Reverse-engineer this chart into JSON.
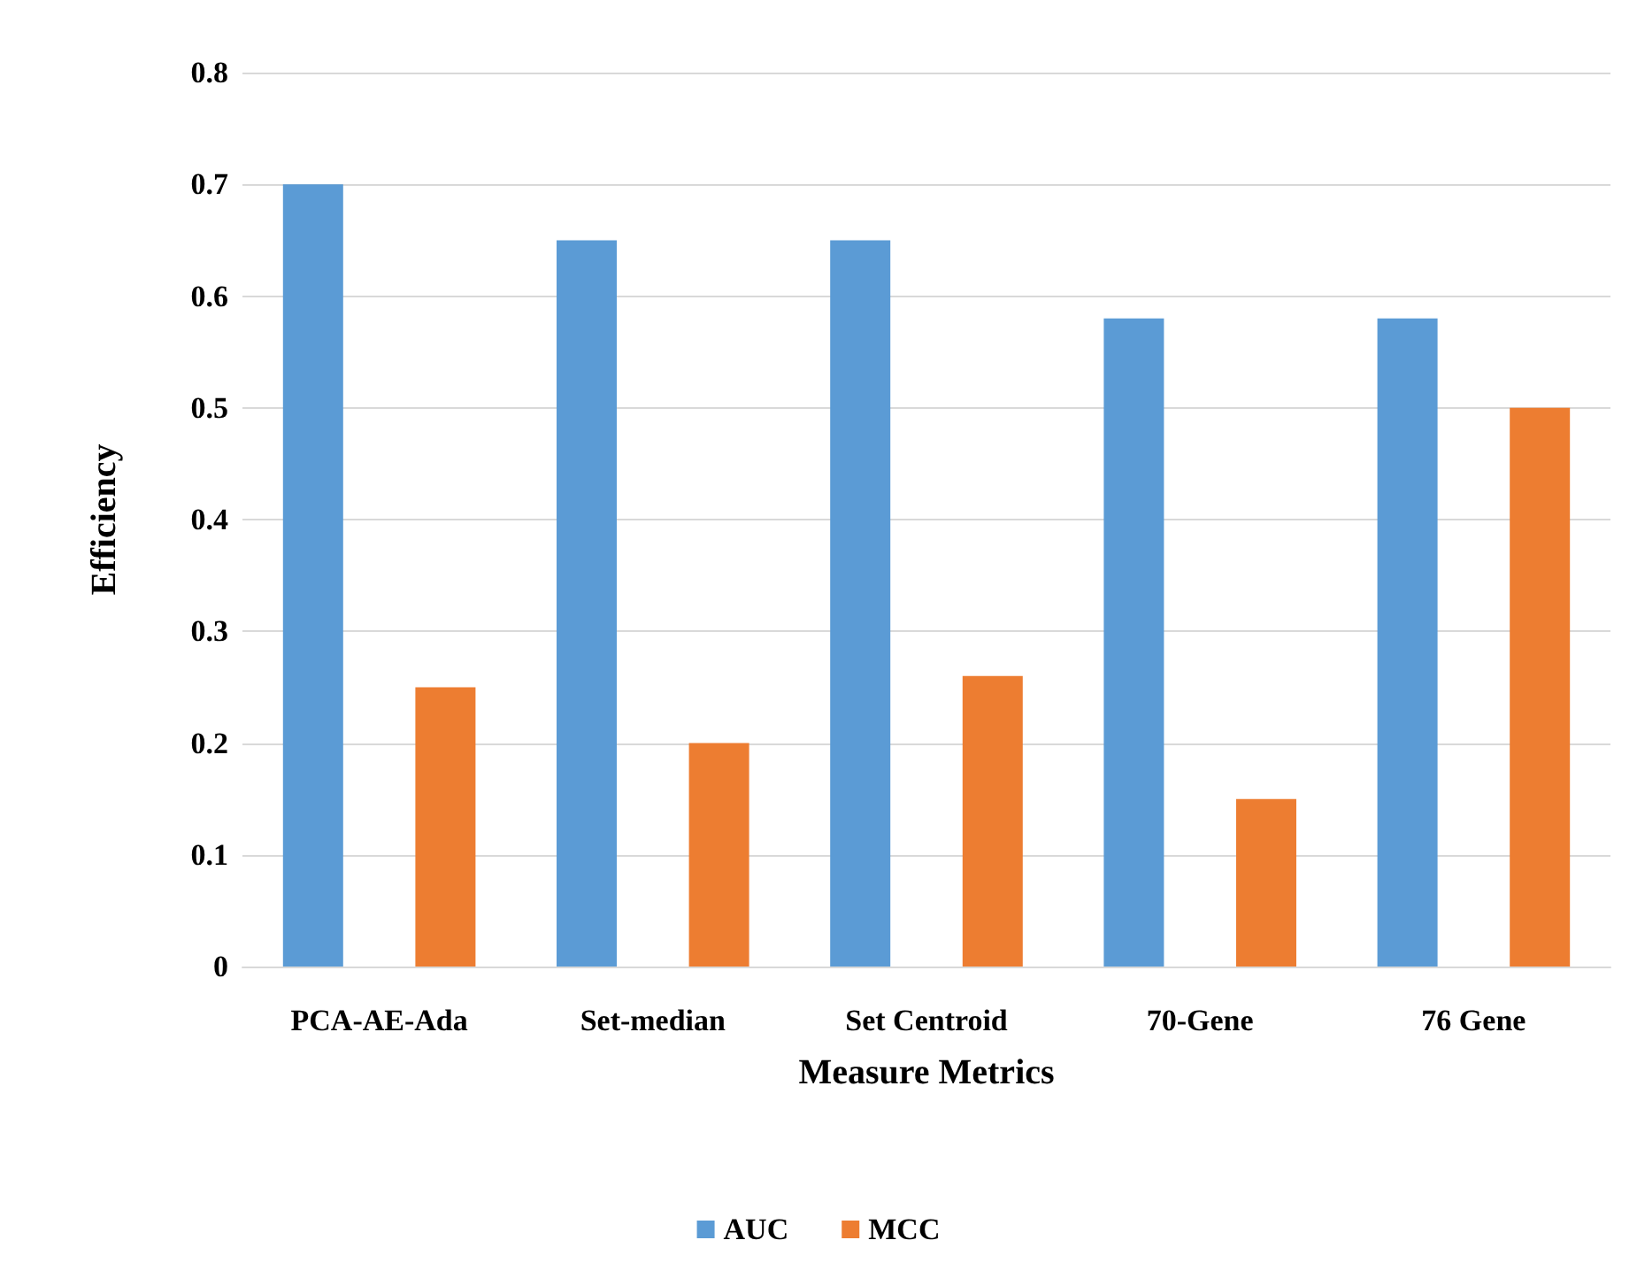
{
  "chart_data": {
    "type": "bar",
    "xlabel": "Measure Metrics",
    "ylabel": "Efficiency",
    "categories": [
      "PCA-AE-Ada",
      "Set-median",
      "Set Centroid",
      "70-Gene",
      "76 Gene"
    ],
    "series": [
      {
        "name": "AUC",
        "color": "#5b9bd5",
        "values": [
          0.7,
          0.65,
          0.65,
          0.58,
          0.58
        ]
      },
      {
        "name": "MCC",
        "color": "#ed7d31",
        "values": [
          0.25,
          0.2,
          0.26,
          0.15,
          0.5
        ]
      }
    ],
    "ylim": [
      0,
      0.8
    ],
    "yticks": [
      {
        "value": 0,
        "label": "0"
      },
      0.1,
      0.2,
      0.3,
      0.4,
      0.5,
      0.6,
      0.7,
      0.8
    ],
    "grid": "y",
    "legend": "bottom"
  }
}
